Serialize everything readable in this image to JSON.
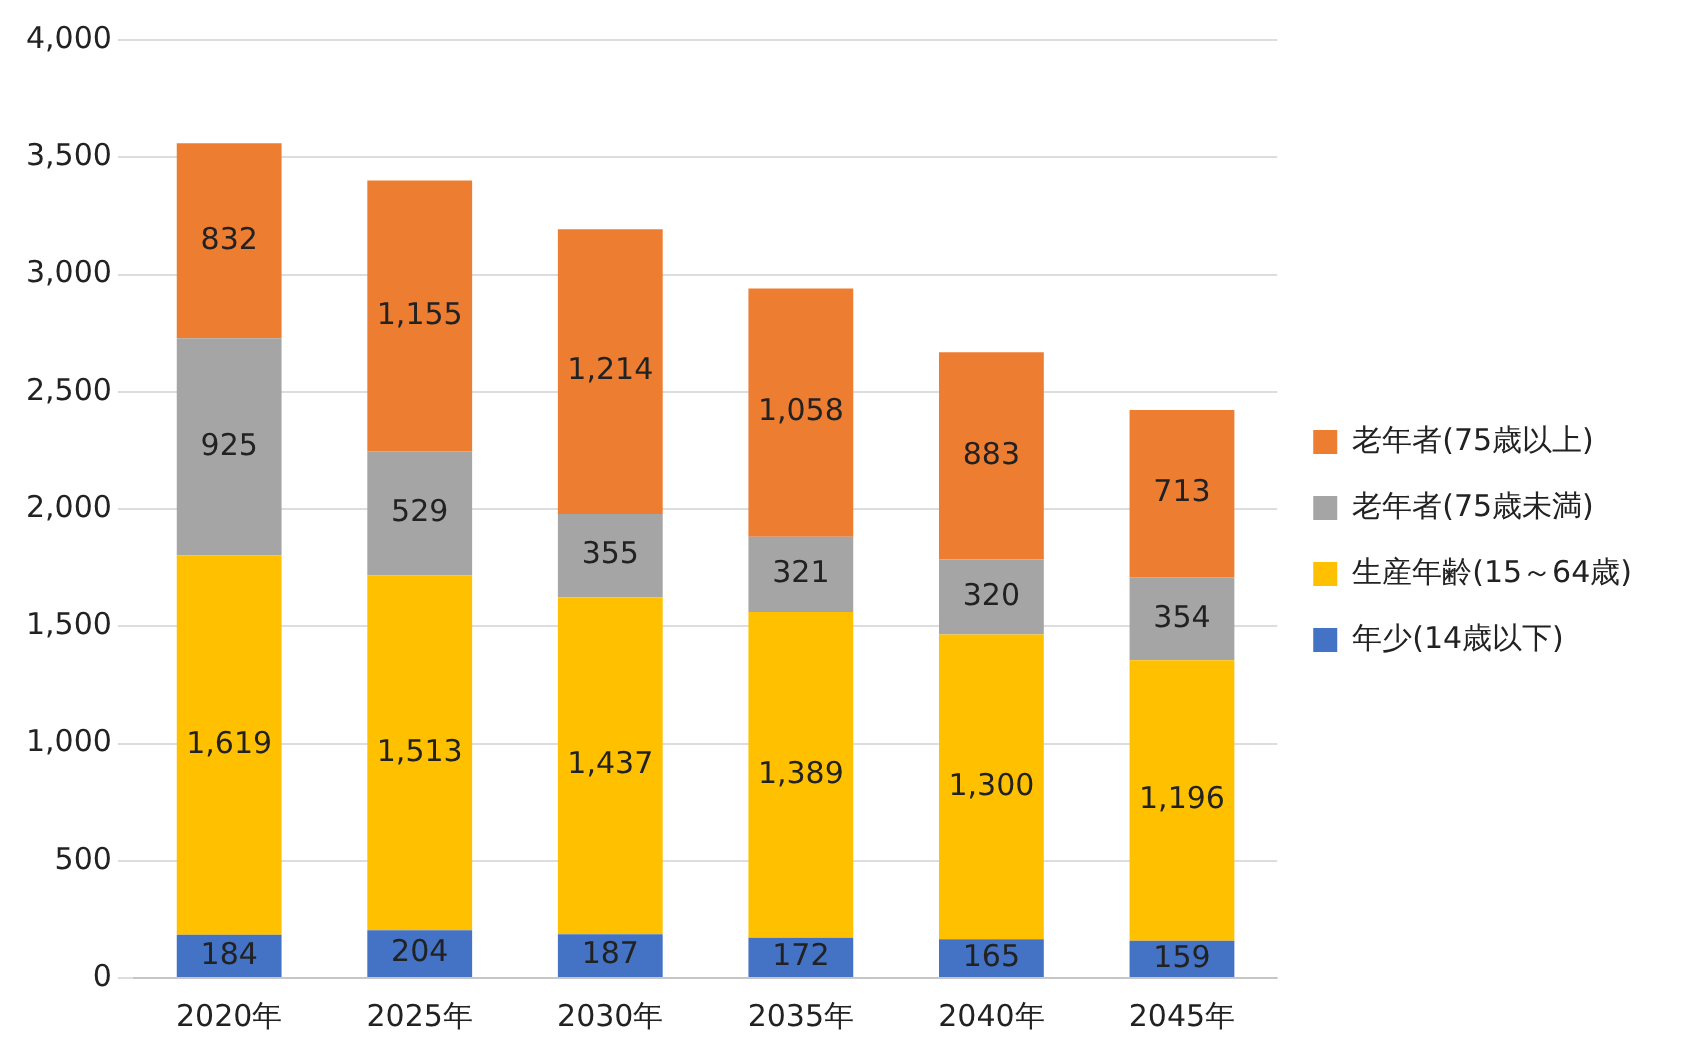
{
  "chart_data": {
    "type": "bar",
    "stacked": true,
    "categories": [
      "2020年",
      "2025年",
      "2030年",
      "2035年",
      "2040年",
      "2045年"
    ],
    "series": [
      {
        "name": "年少(14歳以下)",
        "color": "#4472c4",
        "values": [
          184,
          204,
          187,
          172,
          165,
          159
        ],
        "value_labels": [
          "184",
          "204",
          "187",
          "172",
          "165",
          "159"
        ]
      },
      {
        "name": "生産年齢(15～64歳)",
        "color": "#ffc000",
        "values": [
          1619,
          1513,
          1437,
          1389,
          1300,
          1196
        ],
        "value_labels": [
          "1,619",
          "1,513",
          "1,437",
          "1,389",
          "1,300",
          "1,196"
        ]
      },
      {
        "name": "老年者(75歳未満)",
        "color": "#a5a5a5",
        "values": [
          925,
          529,
          355,
          321,
          320,
          354
        ],
        "value_labels": [
          "925",
          "529",
          "355",
          "321",
          "320",
          "354"
        ]
      },
      {
        "name": "老年者(75歳以上)",
        "color": "#ed7d31",
        "values": [
          832,
          1155,
          1214,
          1058,
          883,
          713
        ],
        "value_labels": [
          "832",
          "1,155",
          "1,214",
          "1,058",
          "883",
          "713"
        ]
      }
    ],
    "ylim": [
      0,
      4000
    ],
    "yticks": [
      {
        "value": 0,
        "label": "0"
      },
      {
        "value": 500,
        "label": "500"
      },
      {
        "value": 1000,
        "label": "1,000"
      },
      {
        "value": 1500,
        "label": "1,500"
      },
      {
        "value": 2000,
        "label": "2,000"
      },
      {
        "value": 2500,
        "label": "2,500"
      },
      {
        "value": 3000,
        "label": "3,000"
      },
      {
        "value": 3500,
        "label": "3,500"
      },
      {
        "value": 4000,
        "label": "4,000"
      }
    ],
    "grid": "y",
    "legend": "right"
  }
}
